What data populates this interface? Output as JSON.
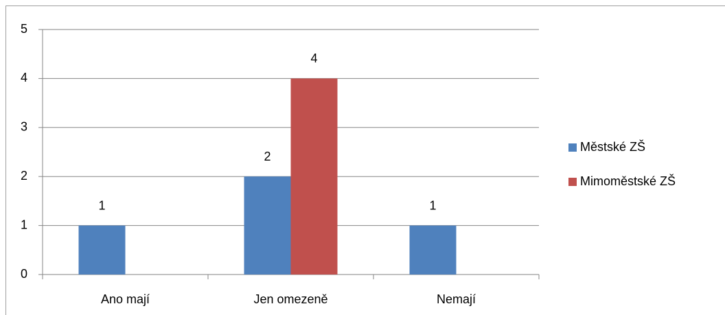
{
  "chart_data": {
    "type": "bar",
    "categories": [
      "Ano mají",
      "Jen omezeně",
      "Nemají"
    ],
    "series": [
      {
        "name": "Městské ZŠ",
        "color": "#4f81bd",
        "values": [
          1,
          2,
          1
        ]
      },
      {
        "name": "Mimoměstské ZŠ",
        "color": "#c0504d",
        "values": [
          null,
          4,
          null
        ]
      }
    ],
    "ylim": [
      0,
      5
    ],
    "yticks": [
      0,
      1,
      2,
      3,
      4,
      5
    ],
    "grid": true,
    "legend": "right"
  }
}
